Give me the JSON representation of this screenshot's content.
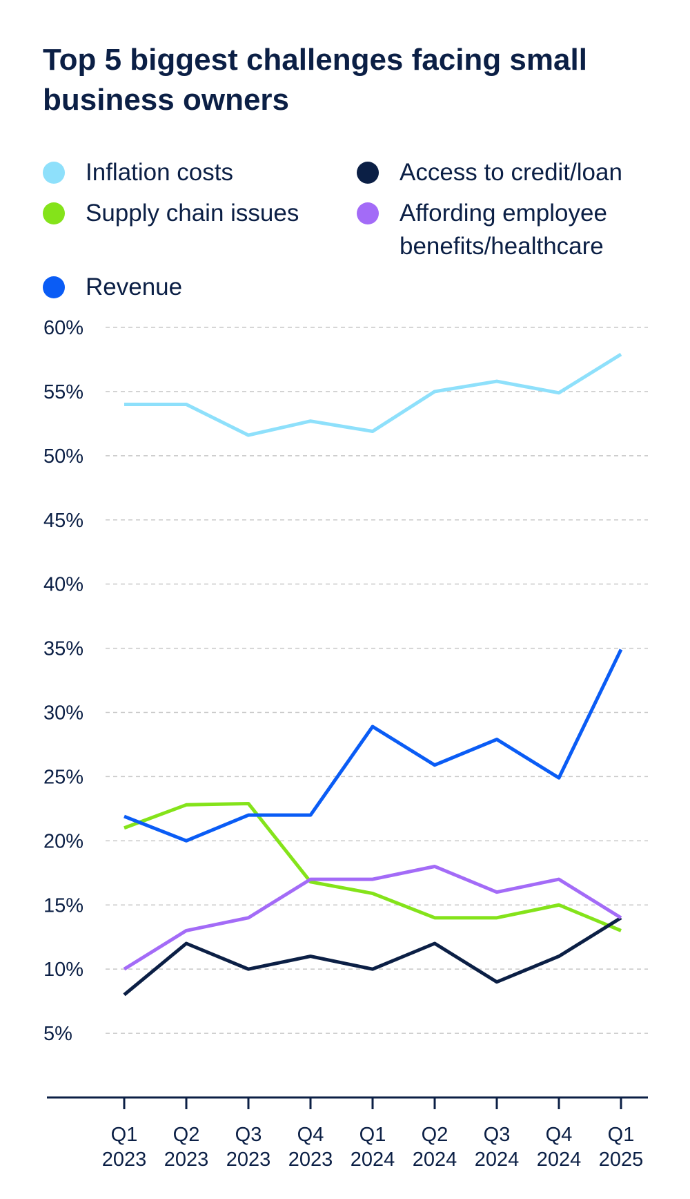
{
  "chart_data": {
    "type": "line",
    "title": "Top 5 biggest challenges facing small business owners",
    "categories": [
      "Q1 2023",
      "Q2 2023",
      "Q3 2023",
      "Q4 2023",
      "Q1 2024",
      "Q2 2024",
      "Q3 2024",
      "Q4 2024",
      "Q1 2025"
    ],
    "series": [
      {
        "name": "Inflation costs",
        "color": "#8ee0fb",
        "values": [
          54,
          54,
          51.6,
          52.7,
          51.9,
          55,
          55.8,
          54.9,
          57.9
        ]
      },
      {
        "name": "Supply chain issues",
        "color": "#84e31a",
        "values": [
          21,
          22.8,
          22.9,
          16.8,
          15.9,
          14,
          14,
          15,
          13
        ]
      },
      {
        "name": "Revenue",
        "color": "#0a5cf5",
        "values": [
          21.9,
          20,
          22,
          22,
          28.9,
          25.9,
          27.9,
          24.9,
          34.9
        ]
      },
      {
        "name": "Access to credit/loan",
        "color": "#0b1f45",
        "values": [
          8,
          12,
          10,
          11,
          10,
          12,
          9,
          11,
          14
        ]
      },
      {
        "name": "Affording employee benefits/healthcare",
        "color": "#a36bf7",
        "values": [
          10,
          13,
          14,
          17,
          17,
          18,
          16,
          17,
          14
        ]
      }
    ],
    "ylim": [
      0,
      60
    ],
    "yticks": [
      {
        "value": 5,
        "label": "5%"
      },
      {
        "value": 10,
        "label": "10%"
      },
      {
        "value": 15,
        "label": "15%"
      },
      {
        "value": 20,
        "label": "20%"
      },
      {
        "value": 25,
        "label": "25%"
      },
      {
        "value": 30,
        "label": "30%"
      },
      {
        "value": 35,
        "label": "35%"
      },
      {
        "value": 40,
        "label": "40%"
      },
      {
        "value": 45,
        "label": "45%"
      },
      {
        "value": 50,
        "label": "50%"
      },
      {
        "value": 55,
        "label": "55%"
      },
      {
        "value": 60,
        "label": "60%"
      }
    ],
    "grid": true
  }
}
